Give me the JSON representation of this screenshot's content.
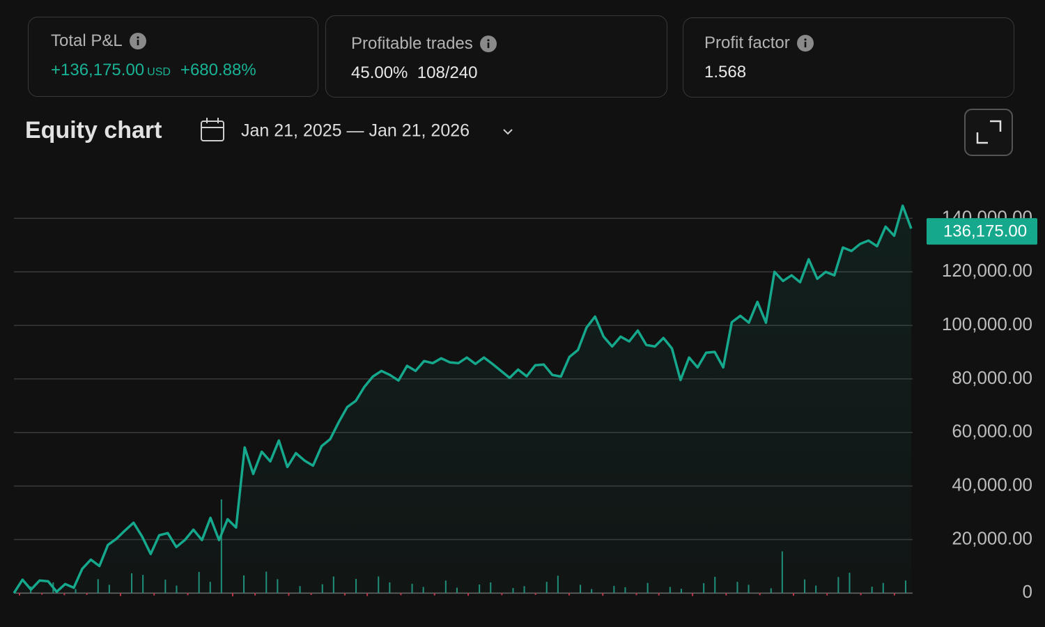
{
  "stats": [
    {
      "label": "Total P&L",
      "value": "+136,175.00",
      "unit": "USD",
      "change": "+680.88%"
    },
    {
      "label": "Profitable trades",
      "value": "45.00%",
      "detail": "108/240"
    },
    {
      "label": "Profit factor",
      "value": "1.568"
    }
  ],
  "equity": {
    "title": "Equity chart",
    "date_range": "Jan 21, 2025 — Jan 21, 2026"
  },
  "chart_data": [
    {
      "type": "line",
      "color": "#15a88c",
      "values": [
        0,
        5000,
        1300,
        4700,
        4400,
        500,
        3400,
        2000,
        9100,
        12500,
        10100,
        18000,
        20300,
        23400,
        26300,
        21100,
        14600,
        21600,
        22400,
        17200,
        19800,
        23700,
        19800,
        28100,
        19800,
        27600,
        24500,
        54400,
        44500,
        52800,
        49200,
        57000,
        47100,
        52300,
        49500,
        47600,
        54900,
        57500,
        63800,
        69500,
        71800,
        77000,
        80900,
        83000,
        81500,
        79400,
        84900,
        83000,
        86700,
        85900,
        87700,
        86200,
        85900,
        88000,
        85600,
        88000,
        85600,
        83000,
        80400,
        83500,
        81000,
        85100,
        85400,
        81500,
        80900,
        88200,
        90800,
        99200,
        103300,
        95800,
        92100,
        95800,
        94000,
        98100,
        92700,
        92100,
        95300,
        91400,
        79600,
        88000,
        84300,
        89800,
        90100,
        84300,
        101200,
        103600,
        101000,
        108800,
        101000,
        120000,
        116600,
        118700,
        116100,
        124700,
        117400,
        120000,
        118700,
        129100,
        127800,
        130400,
        131700,
        129600,
        136900,
        133500,
        144700,
        136175
      ],
      "ylim": [
        -2000,
        156500
      ],
      "yticks": [
        0,
        {
          "value": 20000,
          "label": "20,000.00"
        },
        {
          "value": 40000,
          "label": "40,000.00"
        },
        {
          "value": 60000,
          "label": "60,000.00"
        },
        {
          "value": 80000,
          "label": "80,000.00"
        },
        {
          "value": 100000,
          "label": "100,000.00"
        },
        {
          "value": 120000,
          "label": "120,000.00"
        },
        {
          "value": 140000,
          "label": "140,000.00"
        }
      ],
      "grid": true,
      "current_value": {
        "value": 136175,
        "label": "136,175.00"
      }
    },
    {
      "type": "bar",
      "up_color": "#1f8f7a",
      "down_color": "#c2344a",
      "values": [
        -900,
        2500,
        -600,
        4000,
        -800,
        1500,
        -700,
        5200,
        3100,
        -1100,
        7400,
        6800,
        -900,
        5000,
        2800,
        -800,
        7900,
        4200,
        35000,
        -1200,
        6600,
        -900,
        8000,
        5200,
        -1000,
        2600,
        -700,
        3300,
        6200,
        -900,
        5300,
        -1100,
        6200,
        4000,
        -800,
        3500,
        2300,
        -900,
        4700,
        2000,
        -1000,
        3200,
        4000,
        -800,
        1900,
        2600,
        -700,
        4200,
        6500,
        -900,
        3100,
        1500,
        -1000,
        2700,
        2200,
        -800,
        3800,
        -900,
        2300,
        1600,
        -1100,
        3700,
        6100,
        -900,
        4200,
        3100,
        -800,
        1800,
        15600,
        -1000,
        5100,
        2800,
        -900,
        6000,
        7600,
        -800,
        2400,
        3800,
        -900,
        4700
      ],
      "ylim": [
        -2000,
        156500
      ]
    }
  ]
}
